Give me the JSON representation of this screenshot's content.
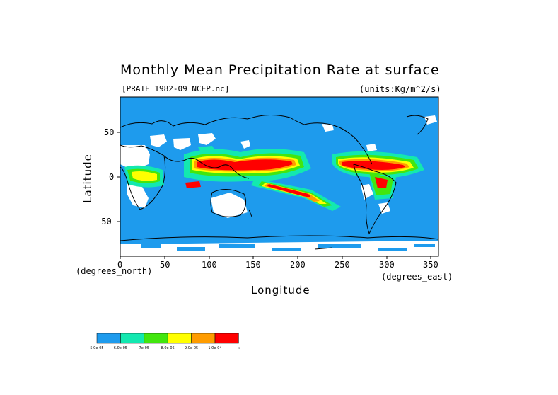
{
  "title": "Monthly Mean Precipitation Rate at surface",
  "file_label": "[PRATE_1982-09_NCEP.nc]",
  "units_label": "(units:Kg/m^2/s)",
  "x_axis": {
    "label": "Longitude",
    "unit": "(degrees_east)",
    "ticks": [
      "0",
      "50",
      "100",
      "150",
      "200",
      "250",
      "300",
      "350"
    ]
  },
  "y_axis": {
    "label": "Latitude",
    "unit": "(degrees_north)",
    "ticks": [
      "50",
      "0",
      "-50"
    ]
  },
  "colors": {
    "ocean": "#1e9bed",
    "land_dry": "#ffffff",
    "coast": "#000000"
  },
  "legend": {
    "colors": [
      "#1e9bed",
      "#13e8b0",
      "#42e60e",
      "#ffff00",
      "#ff9c00",
      "#ff0000"
    ],
    "labels": [
      "5.0e-05",
      "6.0e-05",
      "7e-05",
      "8.0e-05",
      "9.0e-05",
      "1.0e-04",
      "∞"
    ]
  }
}
